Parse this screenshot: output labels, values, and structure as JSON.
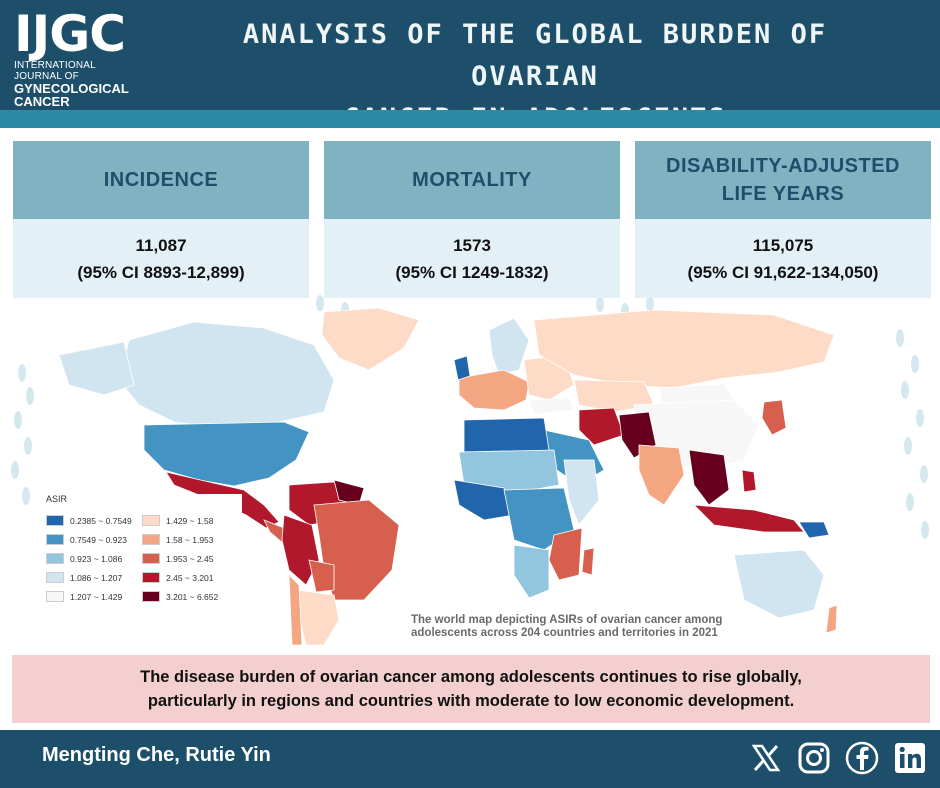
{
  "logo": {
    "mark": "IJGC",
    "lines": [
      "INTERNATIONAL JOURNAL OF",
      "GYNECOLOGICAL",
      "CANCER"
    ]
  },
  "title": {
    "line1": "ANALYSIS OF THE GLOBAL BURDEN OF OVARIAN",
    "line2": "CANCER IN ADOLESCENTS"
  },
  "stats": [
    {
      "heading": "INCIDENCE",
      "value": "11,087",
      "ci": "(95% CI 8893-12,899)"
    },
    {
      "heading": "MORTALITY",
      "value": "1573",
      "ci": "(95% CI 1249-1832)"
    },
    {
      "heading_line1": "DISABILITY-ADJUSTED",
      "heading_line2": "LIFE YEARS",
      "value": "115,075",
      "ci": "(95% CI 91,622-134,050)"
    }
  ],
  "legend": {
    "title": "ASIR",
    "items": [
      {
        "label": "0.2385 ~ 0.7549",
        "color": "#2166ac"
      },
      {
        "label": "0.7549 ~ 0.923",
        "color": "#4393c3"
      },
      {
        "label": "0.923 ~ 1.086",
        "color": "#92c5de"
      },
      {
        "label": "1.086 ~ 1.207",
        "color": "#d1e5f0"
      },
      {
        "label": "1.207 ~ 1.429",
        "color": "#f7f7f7"
      },
      {
        "label": "1.429 ~ 1.58",
        "color": "#fddbc7"
      },
      {
        "label": "1.58 ~ 1.953",
        "color": "#f4a582"
      },
      {
        "label": "1.953 ~ 2.45",
        "color": "#d6604d"
      },
      {
        "label": "2.45 ~ 3.201",
        "color": "#b2182b"
      },
      {
        "label": "3.201 ~ 6.652",
        "color": "#67001f"
      }
    ]
  },
  "map_caption": {
    "line1": "The world map depicting ASIRs of ovarian cancer among",
    "line2": "adolescents across 204 countries and territories in 2021"
  },
  "summary": {
    "line1": "The disease burden of ovarian cancer among adolescents continues to rise globally,",
    "line2": "particularly in regions and countries with moderate to low economic development."
  },
  "footer": {
    "authors": "Mengting Che, Rutie Yin",
    "social_icons": [
      "x-icon",
      "instagram-icon",
      "facebook-icon",
      "linkedin-icon"
    ]
  },
  "colors": {
    "header": "#1d4f6b",
    "accent_strip": "#2d8aa6",
    "stat_heading_bg": "#7fb3c2",
    "stat_body_bg": "#e3f1f6",
    "summary_bg": "#f4cfcf"
  }
}
